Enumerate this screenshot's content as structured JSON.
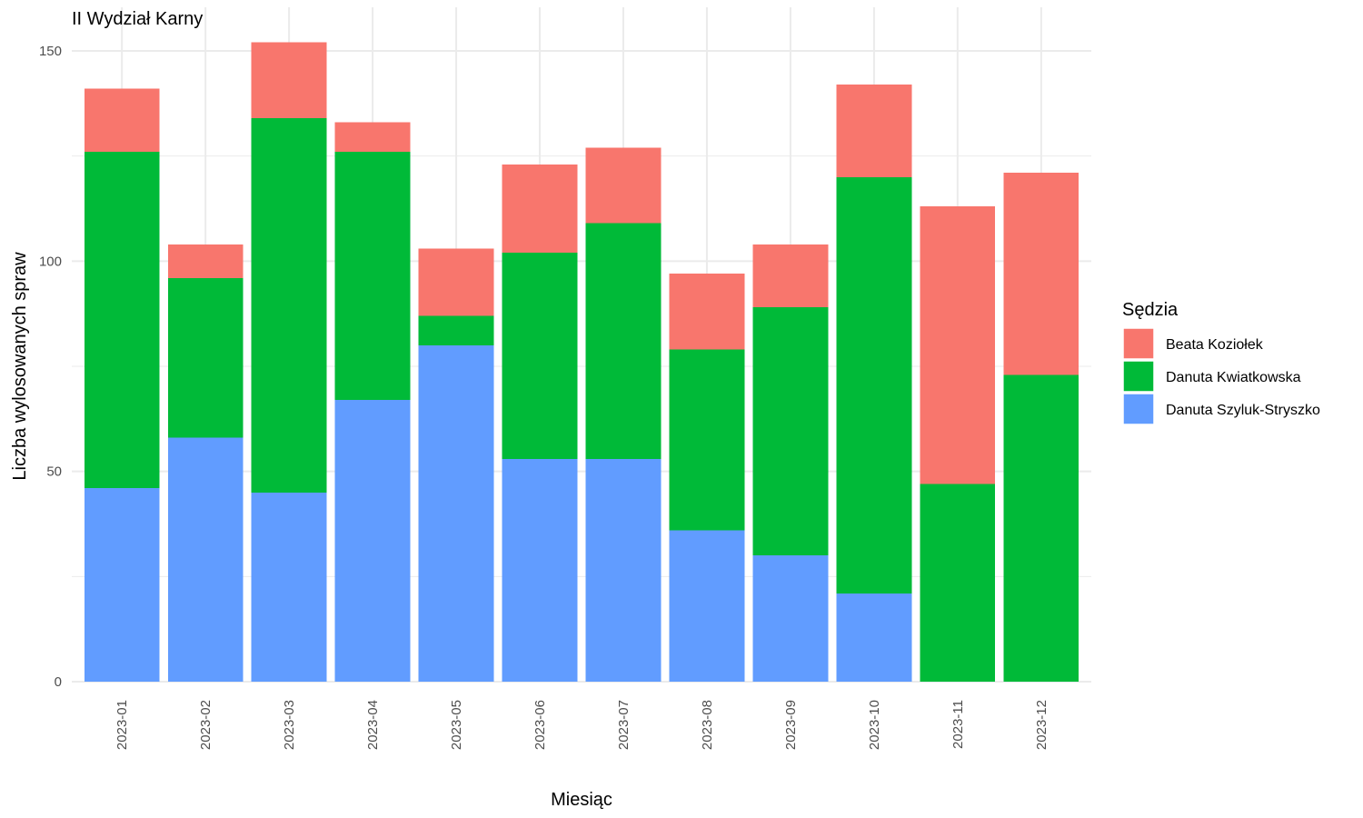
{
  "chart_data": {
    "type": "bar",
    "stacked": true,
    "title": "II Wydział Karny",
    "xlabel": "Miesiąc",
    "ylabel": "Liczba wylosowanych spraw",
    "ylim": [
      0,
      150
    ],
    "yticks": [
      0,
      50,
      100,
      150
    ],
    "grid": true,
    "legend": {
      "title": "Sędzia",
      "placement": "right"
    },
    "categories": [
      "2023-01",
      "2023-02",
      "2023-03",
      "2023-04",
      "2023-05",
      "2023-06",
      "2023-07",
      "2023-08",
      "2023-09",
      "2023-10",
      "2023-11",
      "2023-12"
    ],
    "series": [
      {
        "name": "Danuta Szyluk-Stryszko",
        "color": "#619CFF",
        "values": [
          46,
          58,
          45,
          67,
          80,
          53,
          53,
          36,
          30,
          21,
          0,
          0
        ]
      },
      {
        "name": "Danuta Kwiatkowska",
        "color": "#00BA38",
        "values": [
          80,
          38,
          89,
          59,
          7,
          49,
          56,
          43,
          59,
          99,
          47,
          73
        ]
      },
      {
        "name": "Beata Koziołek",
        "color": "#F8766D",
        "values": [
          15,
          8,
          18,
          7,
          16,
          21,
          18,
          18,
          15,
          22,
          66,
          48
        ]
      }
    ],
    "legend_order": [
      "Beata Koziołek",
      "Danuta Kwiatkowska",
      "Danuta Szyluk-Stryszko"
    ]
  }
}
